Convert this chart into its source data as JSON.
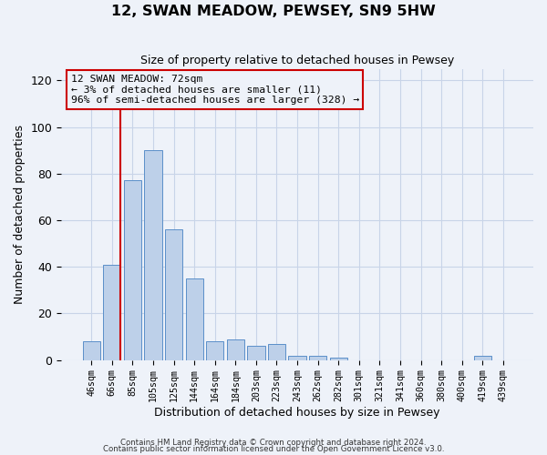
{
  "title": "12, SWAN MEADOW, PEWSEY, SN9 5HW",
  "subtitle": "Size of property relative to detached houses in Pewsey",
  "xlabel": "Distribution of detached houses by size in Pewsey",
  "ylabel": "Number of detached properties",
  "bar_labels": [
    "46sqm",
    "66sqm",
    "85sqm",
    "105sqm",
    "125sqm",
    "144sqm",
    "164sqm",
    "184sqm",
    "203sqm",
    "223sqm",
    "243sqm",
    "262sqm",
    "282sqm",
    "301sqm",
    "321sqm",
    "341sqm",
    "360sqm",
    "380sqm",
    "400sqm",
    "419sqm",
    "439sqm"
  ],
  "bar_values": [
    8,
    41,
    77,
    90,
    56,
    35,
    8,
    9,
    6,
    7,
    2,
    2,
    1,
    0,
    0,
    0,
    0,
    0,
    0,
    2,
    0
  ],
  "bar_color": "#bdd0e9",
  "bar_edge_color": "#5b8fc9",
  "ylim": [
    0,
    125
  ],
  "yticks": [
    0,
    20,
    40,
    60,
    80,
    100,
    120
  ],
  "vline_color": "#cc0000",
  "annotation_title": "12 SWAN MEADOW: 72sqm",
  "annotation_line1": "← 3% of detached houses are smaller (11)",
  "annotation_line2": "96% of semi-detached houses are larger (328) →",
  "annotation_box_color": "#cc0000",
  "footnote1": "Contains HM Land Registry data © Crown copyright and database right 2024.",
  "footnote2": "Contains public sector information licensed under the Open Government Licence v3.0.",
  "grid_color": "#c8d4e8",
  "background_color": "#eef2f9"
}
